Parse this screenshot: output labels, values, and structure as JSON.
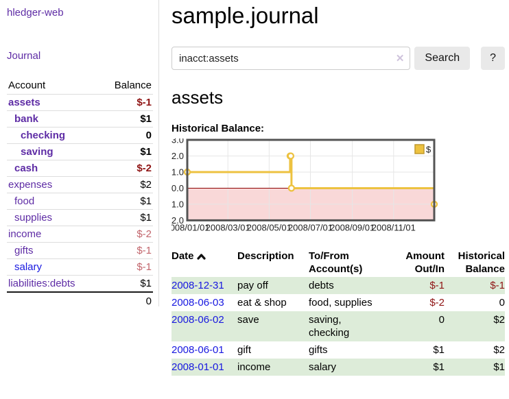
{
  "app": {
    "brand": "hledger-web"
  },
  "sidebar": {
    "journal_link": "Journal",
    "accounts_table": {
      "account_header": "Account",
      "balance_header": "Balance",
      "rows": [
        {
          "name": "assets",
          "balance": "$-1"
        },
        {
          "name": "bank",
          "balance": "$1"
        },
        {
          "name": "checking",
          "balance": "0"
        },
        {
          "name": "saving",
          "balance": "$1"
        },
        {
          "name": "cash",
          "balance": "$-2"
        },
        {
          "name": "expenses",
          "balance": "$2"
        },
        {
          "name": "food",
          "balance": "$1"
        },
        {
          "name": "supplies",
          "balance": "$1"
        },
        {
          "name": "income",
          "balance": "$-2"
        },
        {
          "name": "gifts",
          "balance": "$-1"
        },
        {
          "name": "salary",
          "balance": "$-1"
        },
        {
          "name": "liabilities:debts",
          "balance": "$1"
        }
      ],
      "total": "0"
    }
  },
  "main": {
    "title": "sample.journal",
    "search": {
      "value": "inacct:assets",
      "clear_icon": "✕",
      "search_button": "Search",
      "help_button": "?"
    },
    "account_heading": "assets",
    "chart_heading": "Historical Balance:"
  },
  "chart_data": {
    "type": "line",
    "step": true,
    "title": "Historical Balance of assets",
    "series": [
      {
        "name": "$",
        "color": "#edc240",
        "points": [
          [
            "2008-01-01",
            1
          ],
          [
            "2008-06-01",
            2
          ],
          [
            "2008-06-02",
            2
          ],
          [
            "2008-06-03",
            0
          ],
          [
            "2008-12-31",
            -1
          ]
        ]
      }
    ],
    "xlim": [
      "2008-01-01",
      "2008-12-31"
    ],
    "ylim": [
      -2,
      3
    ],
    "y_ticks": [
      "3.0",
      "2.0",
      "1.0",
      "0.0",
      "-1.0",
      "-2.0"
    ],
    "x_ticks": [
      "2008/01/01",
      "2008/03/01",
      "2008/05/01",
      "2008/07/01",
      "2008/09/01",
      "2008/11/01"
    ],
    "legend_position": "top-right",
    "grid": true,
    "grid_color": "#e6e6e6",
    "border_color": "#545454",
    "negative_fill": "#f9d8d8",
    "zero_line_color": "#8b0000"
  },
  "register": {
    "headers": {
      "date": "Date",
      "description": "Description",
      "accounts": "To/From Account(s)",
      "amount": "Amount Out/In",
      "balance": "Historical Balance"
    },
    "rows": [
      {
        "date": "2008-12-31",
        "description": "pay off",
        "accounts": "debts",
        "amount": "$-1",
        "balance": "$-1"
      },
      {
        "date": "2008-06-03",
        "description": "eat & shop",
        "accounts": "food, supplies",
        "amount": "$-2",
        "balance": "0"
      },
      {
        "date": "2008-06-02",
        "description": "save",
        "accounts": "saving, checking",
        "amount": "0",
        "balance": "$2"
      },
      {
        "date": "2008-06-01",
        "description": "gift",
        "accounts": "gifts",
        "amount": "$1",
        "balance": "$2"
      },
      {
        "date": "2008-01-01",
        "description": "income",
        "accounts": "salary",
        "amount": "$1",
        "balance": "$1"
      }
    ]
  },
  "colors": {
    "link_purple": "#5e2ca5",
    "link_blue": "#1717e0",
    "negative_red": "#8f1414",
    "negative_rose": "#c2656c",
    "row_stripe_green": "#ddecd9",
    "chart_gold": "#edc240"
  }
}
